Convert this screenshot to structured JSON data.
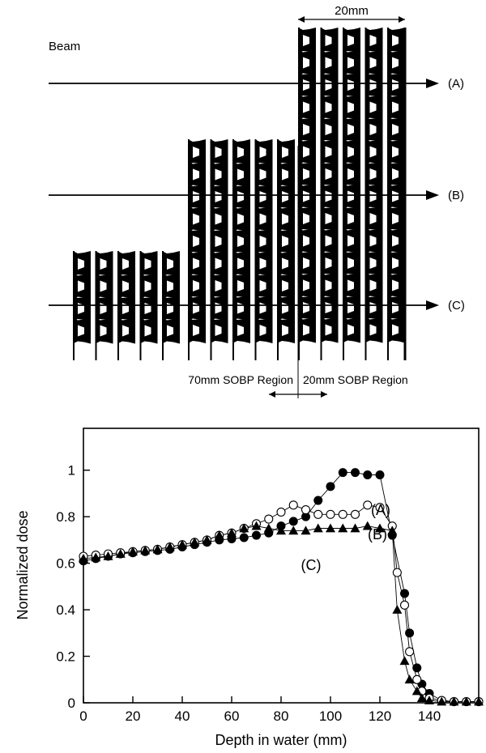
{
  "diagram": {
    "beam_label": "Beam",
    "width_label": "20mm",
    "line_labels": [
      "(A)",
      "(B)",
      "(C)"
    ],
    "region_left_label": "70mm SOBP Region",
    "region_right_label": "20mm SOBP Region"
  },
  "chart_data": {
    "type": "scatter",
    "xlabel": "Depth in water (mm)",
    "ylabel": "Normalized dose",
    "xlim": [
      0,
      160
    ],
    "ylim": [
      0,
      1.18
    ],
    "xticks": [
      0,
      20,
      40,
      60,
      80,
      100,
      120,
      140
    ],
    "yticks": [
      0,
      0.2,
      0.4,
      0.6,
      0.8,
      1
    ],
    "yticklabels": [
      "0",
      "0.2",
      "0.4",
      "0.6",
      "0.8",
      "1"
    ],
    "grid": false,
    "series": [
      {
        "name": "(A)",
        "marker": "filled-circle",
        "x": [
          0,
          5,
          10,
          15,
          20,
          25,
          30,
          35,
          40,
          45,
          50,
          55,
          60,
          65,
          70,
          75,
          80,
          85,
          90,
          95,
          100,
          105,
          110,
          115,
          120,
          125,
          130,
          132,
          135,
          137,
          140,
          145,
          150,
          155,
          160
        ],
        "y": [
          0.61,
          0.62,
          0.63,
          0.64,
          0.645,
          0.65,
          0.655,
          0.66,
          0.67,
          0.68,
          0.69,
          0.7,
          0.705,
          0.71,
          0.72,
          0.73,
          0.76,
          0.78,
          0.8,
          0.87,
          0.93,
          0.99,
          0.99,
          0.98,
          0.98,
          0.72,
          0.47,
          0.3,
          0.15,
          0.08,
          0.04,
          0.01,
          0.005,
          0.005,
          0.005
        ]
      },
      {
        "name": "(B)",
        "marker": "open-circle",
        "x": [
          0,
          5,
          10,
          15,
          20,
          25,
          30,
          35,
          40,
          45,
          50,
          55,
          60,
          65,
          70,
          75,
          80,
          85,
          90,
          95,
          100,
          105,
          110,
          115,
          120,
          125,
          127,
          130,
          132,
          135,
          137,
          140,
          145,
          150,
          155,
          160
        ],
        "y": [
          0.63,
          0.635,
          0.64,
          0.645,
          0.65,
          0.655,
          0.66,
          0.67,
          0.68,
          0.69,
          0.7,
          0.72,
          0.73,
          0.75,
          0.77,
          0.79,
          0.82,
          0.85,
          0.83,
          0.81,
          0.81,
          0.81,
          0.81,
          0.85,
          0.84,
          0.76,
          0.56,
          0.42,
          0.22,
          0.1,
          0.05,
          0.02,
          0.01,
          0.005,
          0.005,
          0.005
        ]
      },
      {
        "name": "(C)",
        "marker": "filled-triangle",
        "x": [
          0,
          5,
          10,
          15,
          20,
          25,
          30,
          35,
          40,
          45,
          50,
          55,
          60,
          65,
          70,
          75,
          80,
          85,
          90,
          95,
          100,
          105,
          110,
          115,
          120,
          125,
          127,
          130,
          132,
          135,
          137,
          140,
          145,
          150,
          155,
          160
        ],
        "y": [
          0.62,
          0.625,
          0.63,
          0.64,
          0.65,
          0.655,
          0.66,
          0.67,
          0.68,
          0.69,
          0.7,
          0.72,
          0.73,
          0.75,
          0.76,
          0.75,
          0.74,
          0.74,
          0.74,
          0.75,
          0.75,
          0.75,
          0.75,
          0.76,
          0.75,
          0.74,
          0.4,
          0.18,
          0.1,
          0.05,
          0.02,
          0.01,
          0.005,
          0.005,
          0.005,
          0.005
        ]
      }
    ]
  }
}
